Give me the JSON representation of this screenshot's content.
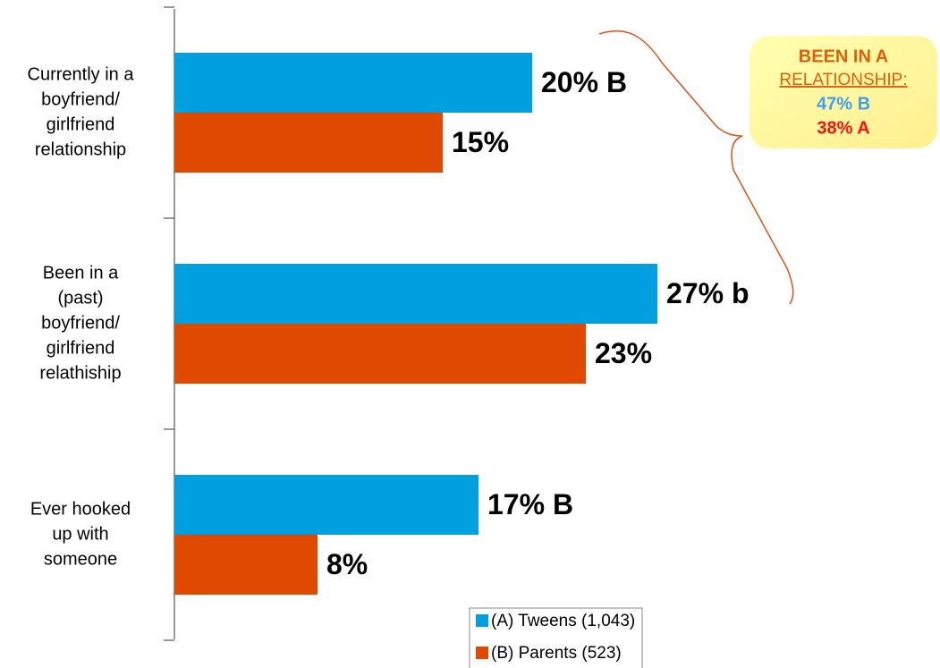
{
  "chart_data": {
    "type": "hbar",
    "categories": [
      [
        "Currently in a",
        "boyfriend/",
        "girlfriend",
        "relationship"
      ],
      [
        "Been in a",
        "(past)",
        "boyfriend/",
        "girlfriend",
        "relathiship"
      ],
      [
        "Ever hooked",
        "up with",
        "someone"
      ]
    ],
    "series": [
      {
        "name": "(A) Tweens (1,043)",
        "color": "#00a0e0",
        "values": [
          20,
          27,
          17
        ],
        "value_labels": [
          "20% B",
          "27% b",
          "17% B"
        ]
      },
      {
        "name": "(B) Parents (523)",
        "color": "#e04a00",
        "values": [
          15,
          23,
          8
        ],
        "value_labels": [
          "15%",
          "23%",
          "8%"
        ]
      }
    ],
    "annotation": {
      "heading": [
        "BEEN IN A",
        "RELATIONSHIP:"
      ],
      "lines": [
        "47% B",
        "38% A"
      ]
    }
  }
}
